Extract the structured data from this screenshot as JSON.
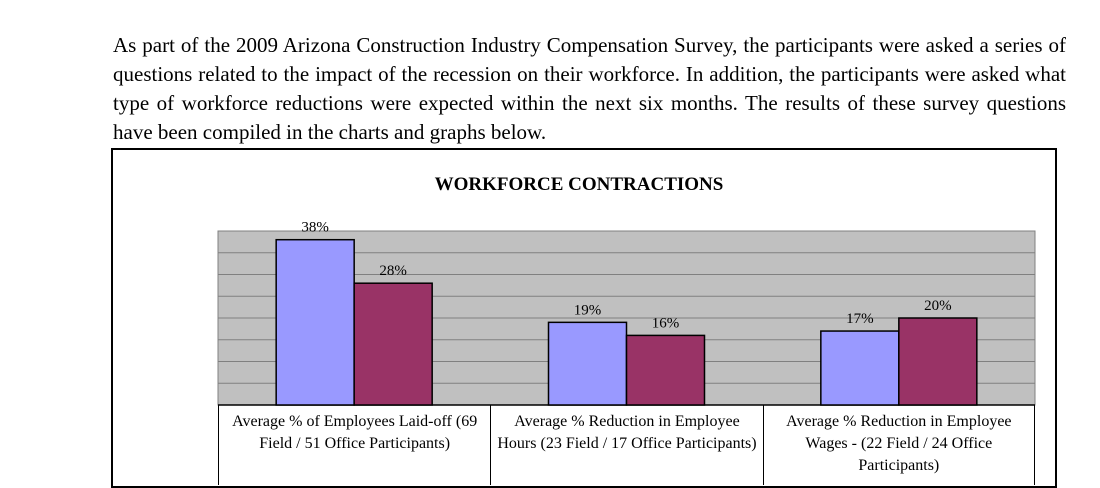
{
  "intro": {
    "text": "As part of the 2009 Arizona Construction Industry Compensation Survey, the participants were asked a series of questions related to the impact of the recession on their workforce.  In addition, the participants were asked what type of workforce reductions were expected within the next six months.  The results of these survey questions have been compiled in the charts and graphs below."
  },
  "chart_data": {
    "type": "bar",
    "title": "WORKFORCE CONTRACTIONS",
    "categories": [
      "Average % of Employees Laid-off (69 Field / 51 Office Participants)",
      "Average % Reduction in Employee Hours (23 Field / 17 Office Participants)",
      "Average % Reduction in Employee Wages - (22 Field / 24 Office Participants)"
    ],
    "series": [
      {
        "values": [
          38,
          19,
          17
        ],
        "labels": [
          "38%",
          "19%",
          "17%"
        ],
        "color": "#9999ff"
      },
      {
        "values": [
          28,
          16,
          20
        ],
        "labels": [
          "28%",
          "16%",
          "20%"
        ],
        "color": "#993366"
      }
    ],
    "ylim": [
      0,
      40
    ],
    "grid": true,
    "plot_background": "#c0c0c0"
  }
}
